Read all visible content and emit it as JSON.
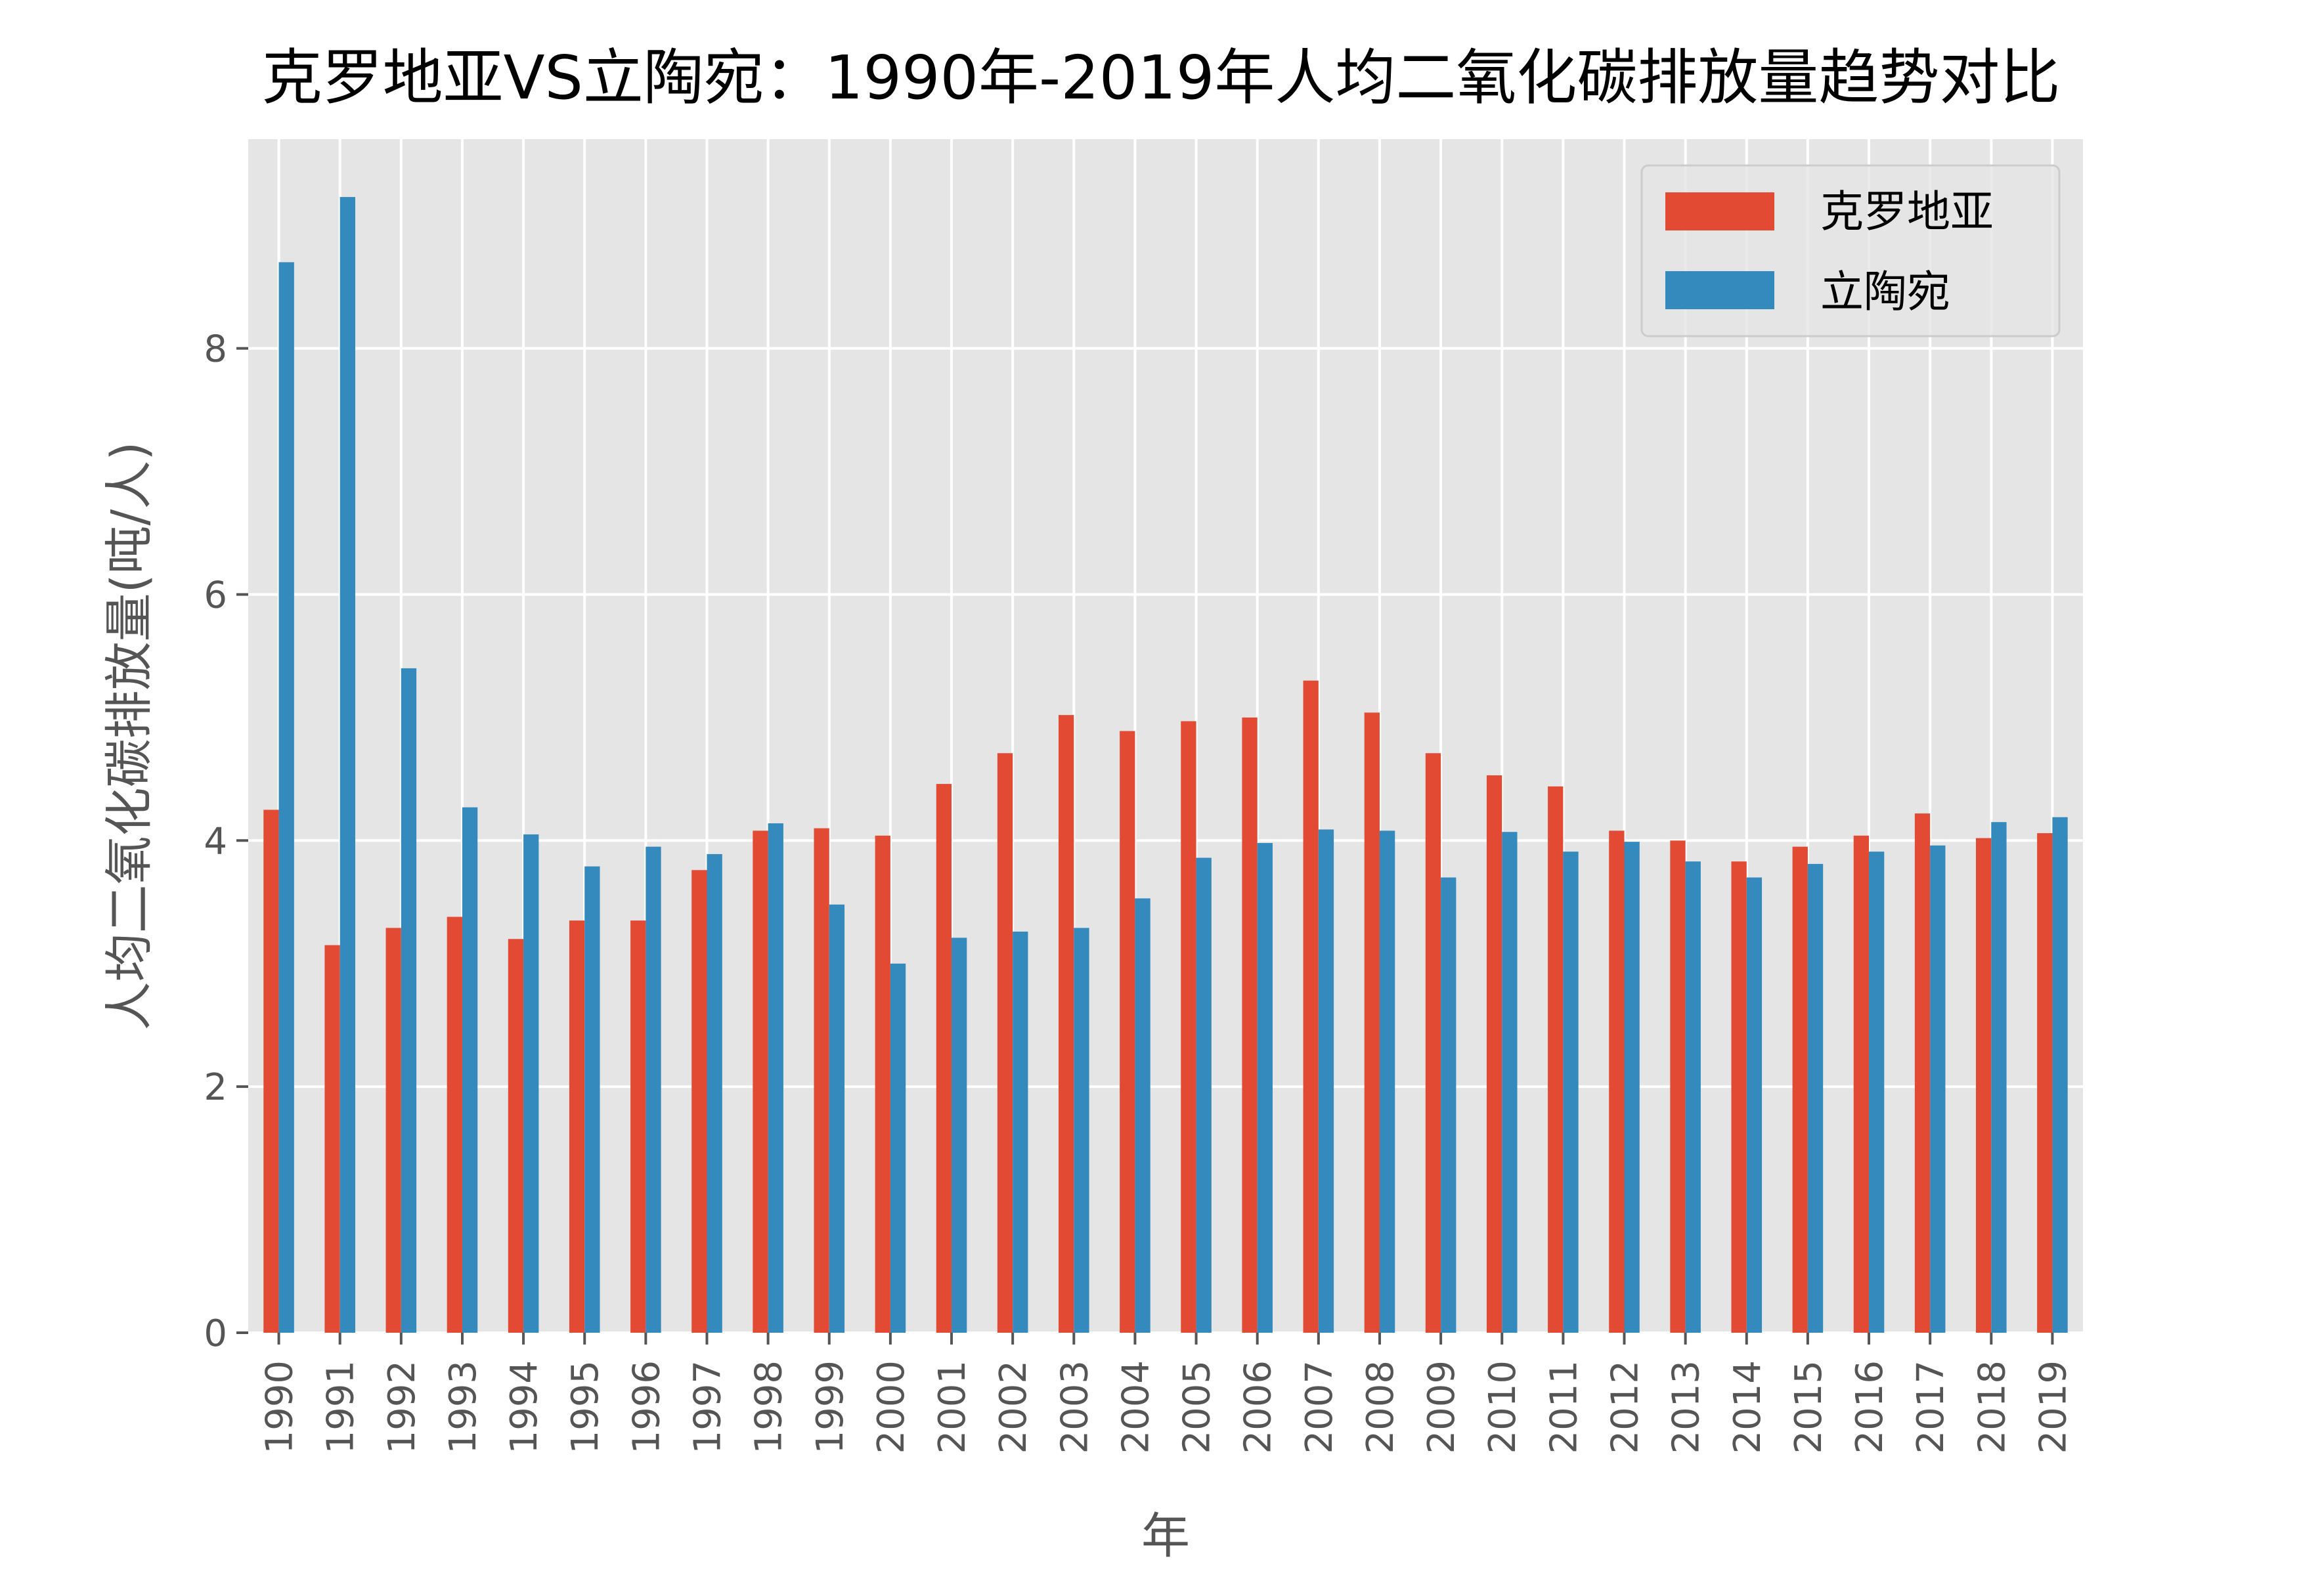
{
  "chart_data": {
    "type": "bar",
    "title": "克罗地亚VS立陶宛：1990年-2019年人均二氧化碳排放量趋势对比",
    "xlabel": "年",
    "ylabel": "人均二氧化碳排放量(吨/人)",
    "ylim": [
      0,
      9.7
    ],
    "yticks": [
      "0",
      "2",
      "4",
      "6",
      "8"
    ],
    "grid": true,
    "legend_position": "top-right",
    "categories": [
      "1990",
      "1991",
      "1992",
      "1993",
      "1994",
      "1995",
      "1996",
      "1997",
      "1998",
      "1999",
      "2000",
      "2001",
      "2002",
      "2003",
      "2004",
      "2005",
      "2006",
      "2007",
      "2008",
      "2009",
      "2010",
      "2011",
      "2012",
      "2013",
      "2014",
      "2015",
      "2016",
      "2017",
      "2018",
      "2019"
    ],
    "series": [
      {
        "name": "克罗地亚",
        "color": "#E24A33",
        "values": [
          4.25,
          3.15,
          3.29,
          3.38,
          3.2,
          3.35,
          3.35,
          3.76,
          4.08,
          4.1,
          4.04,
          4.46,
          4.71,
          5.02,
          4.89,
          4.97,
          5.0,
          5.3,
          5.04,
          4.71,
          4.53,
          4.44,
          4.08,
          4.0,
          3.83,
          3.95,
          4.04,
          4.22,
          4.02,
          4.06
        ]
      },
      {
        "name": "立陶宛",
        "color": "#348ABD",
        "values": [
          8.7,
          9.23,
          5.4,
          4.27,
          4.05,
          3.79,
          3.95,
          3.89,
          4.14,
          3.48,
          3.0,
          3.21,
          3.26,
          3.29,
          3.53,
          3.86,
          3.98,
          4.09,
          4.08,
          3.7,
          4.07,
          3.91,
          3.99,
          3.83,
          3.7,
          3.81,
          3.91,
          3.96,
          4.15,
          4.19
        ]
      }
    ]
  }
}
